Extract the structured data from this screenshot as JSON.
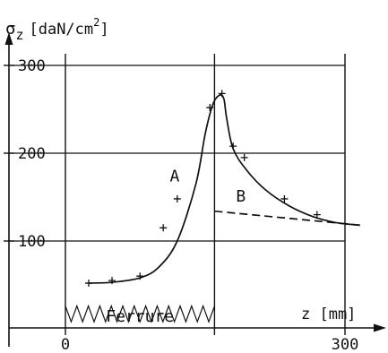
{
  "chart_data": {
    "type": "line",
    "ylabel_symbol": "σ",
    "ylabel_sub": "z",
    "ylabel_unit": "[daN/cm",
    "ylabel_sup": "2",
    "ylabel_close": "]",
    "xlabel": "z [mm]",
    "xlim": [
      -30,
      320
    ],
    "ylim": [
      0,
      335
    ],
    "x_ticks": [
      {
        "value": 0,
        "label": "0"
      },
      {
        "value": 300,
        "label": "300"
      }
    ],
    "y_ticks": [
      {
        "value": 100,
        "label": "100"
      },
      {
        "value": 200,
        "label": "200"
      },
      {
        "value": 300,
        "label": "300"
      }
    ],
    "vertical_lines": [
      0,
      160,
      300
    ],
    "horizontal_lines": [
      100,
      200,
      300
    ],
    "series": [
      {
        "name": "A",
        "style": "solid",
        "x": [
          25,
          50,
          80,
          100,
          120,
          140,
          150,
          158,
          165,
          170,
          173,
          180,
          195,
          215,
          240,
          265,
          290,
          316
        ],
        "y": [
          52,
          53,
          58,
          70,
          100,
          165,
          222,
          255,
          266,
          262,
          240,
          205,
          180,
          158,
          140,
          128,
          121,
          118
        ]
      },
      {
        "name": "B",
        "style": "dashed",
        "x": [
          160,
          316
        ],
        "y": [
          134,
          118
        ]
      }
    ],
    "measured_points": {
      "x": [
        25,
        50,
        80,
        105,
        120,
        155,
        168,
        180,
        192,
        235,
        270
      ],
      "y": [
        52,
        55,
        60,
        115,
        148,
        252,
        268,
        208,
        195,
        148,
        130
      ]
    },
    "series_labels": [
      {
        "text": "A",
        "x": 112,
        "y": 168
      },
      {
        "text": "B",
        "x": 183,
        "y": 145
      }
    ],
    "region_label": {
      "text": "Ferrure",
      "x": 80,
      "y": 10
    },
    "region_band": {
      "x_start": 0,
      "x_end": 160,
      "y_low": 8,
      "y_high": 26
    }
  }
}
